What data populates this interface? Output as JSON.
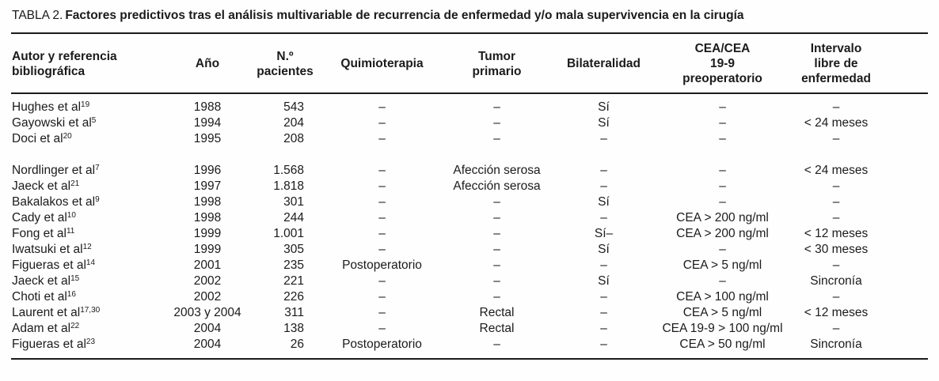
{
  "title": {
    "label": "TABLA 2.",
    "caption": "Factores predictivos tras el análisis multivariable de recurrencia de enfermedad y/o mala supervivencia en la cirugía"
  },
  "table": {
    "columns": [
      {
        "key": "autor",
        "label": "Autor y referencia\nbibliográfica"
      },
      {
        "key": "ano",
        "label": "Año"
      },
      {
        "key": "pacientes",
        "label": "N.º\npacientes"
      },
      {
        "key": "quimioterapia",
        "label": "Quimioterapia"
      },
      {
        "key": "tumor",
        "label": "Tumor\nprimario"
      },
      {
        "key": "bilateralidad",
        "label": "Bilateralidad"
      },
      {
        "key": "cea",
        "label": "CEA/CEA\n19-9\npreoperatorio"
      },
      {
        "key": "intervalo",
        "label": "Intervalo\nlibre de\nenfermedad"
      }
    ],
    "groups": [
      {
        "rows": [
          {
            "author": "Hughes et al",
            "ref": "19",
            "ano": "1988",
            "pacientes": "543",
            "quimioterapia": "–",
            "tumor": "–",
            "bilateralidad": "Sí",
            "cea": "–",
            "intervalo": "–"
          },
          {
            "author": "Gayowski et al",
            "ref": "5",
            "ano": "1994",
            "pacientes": "204",
            "quimioterapia": "–",
            "tumor": "–",
            "bilateralidad": "Sí",
            "cea": "–",
            "intervalo": "< 24 meses"
          },
          {
            "author": "Doci et al",
            "ref": "20",
            "ano": "1995",
            "pacientes": "208",
            "quimioterapia": "–",
            "tumor": "–",
            "bilateralidad": "–",
            "cea": "–",
            "intervalo": "–"
          }
        ]
      },
      {
        "rows": [
          {
            "author": "Nordlinger et al",
            "ref": "7",
            "ano": "1996",
            "pacientes": "1.568",
            "quimioterapia": "–",
            "tumor": "Afección serosa",
            "bilateralidad": "–",
            "cea": "–",
            "intervalo": "< 24 meses"
          },
          {
            "author": "Jaeck et al",
            "ref": "21",
            "ano": "1997",
            "pacientes": "1.818",
            "quimioterapia": "–",
            "tumor": "Afección serosa",
            "bilateralidad": "–",
            "cea": "–",
            "intervalo": "–"
          },
          {
            "author": "Bakalakos et al",
            "ref": "9",
            "ano": "1998",
            "pacientes": "301",
            "quimioterapia": "–",
            "tumor": "–",
            "bilateralidad": "Sí",
            "cea": "–",
            "intervalo": "–"
          },
          {
            "author": "Cady et al",
            "ref": "10",
            "ano": "1998",
            "pacientes": "244",
            "quimioterapia": "–",
            "tumor": "–",
            "bilateralidad": "–",
            "cea": "CEA > 200 ng/ml",
            "intervalo": "–"
          },
          {
            "author": "Fong et al",
            "ref": "11",
            "ano": "1999",
            "pacientes": "1.001",
            "quimioterapia": "–",
            "tumor": "–",
            "bilateralidad": "Sí–",
            "cea": "CEA > 200 ng/ml",
            "intervalo": "< 12 meses"
          },
          {
            "author": "Iwatsuki et al",
            "ref": "12",
            "ano": "1999",
            "pacientes": "305",
            "quimioterapia": "–",
            "tumor": "–",
            "bilateralidad": "Sí",
            "cea": "–",
            "intervalo": "< 30 meses"
          },
          {
            "author": "Figueras et al",
            "ref": "14",
            "ano": "2001",
            "pacientes": "235",
            "quimioterapia": "Postoperatorio",
            "tumor": "–",
            "bilateralidad": "–",
            "cea": "CEA > 5 ng/ml",
            "intervalo": "–"
          },
          {
            "author": "Jaeck et al",
            "ref": "15",
            "ano": "2002",
            "pacientes": "221",
            "quimioterapia": "–",
            "tumor": "–",
            "bilateralidad": "Sí",
            "cea": "–",
            "intervalo": "Sincronía"
          },
          {
            "author": "Choti et al",
            "ref": "16",
            "ano": "2002",
            "pacientes": "226",
            "quimioterapia": "–",
            "tumor": "–",
            "bilateralidad": "–",
            "cea": "CEA > 100 ng/ml",
            "intervalo": "–"
          },
          {
            "author": "Laurent et al",
            "ref": "17,30",
            "ano": "2003 y 2004",
            "pacientes": "311",
            "quimioterapia": "–",
            "tumor": "Rectal",
            "bilateralidad": "–",
            "cea": "CEA > 5 ng/ml",
            "intervalo": "< 12 meses"
          },
          {
            "author": "Adam et al",
            "ref": "22",
            "ano": "2004",
            "pacientes": "138",
            "quimioterapia": "–",
            "tumor": "Rectal",
            "bilateralidad": "–",
            "cea": "CEA 19-9 > 100 ng/ml",
            "intervalo": "–"
          },
          {
            "author": "Figueras et al",
            "ref": "23",
            "ano": "2004",
            "pacientes": "26",
            "quimioterapia": "Postoperatorio",
            "tumor": "–",
            "bilateralidad": "–",
            "cea": "CEA > 50 ng/ml",
            "intervalo": "Sincronía"
          }
        ]
      }
    ]
  },
  "colors": {
    "text": "#1b1b1b",
    "rule": "#1b1b1b",
    "background": "#fefefe"
  }
}
